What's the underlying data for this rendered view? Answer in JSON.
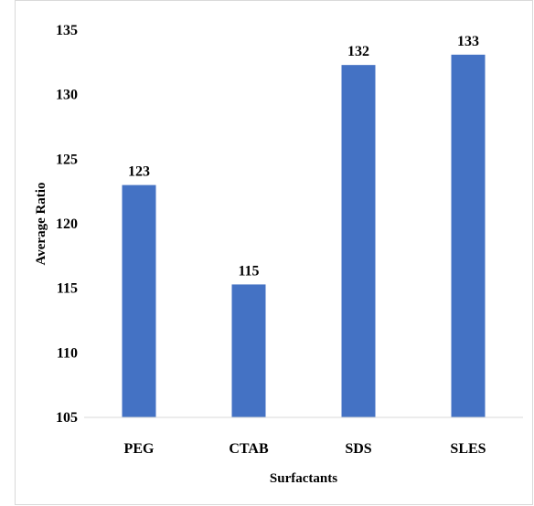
{
  "chart_data": {
    "type": "bar",
    "title": "",
    "xlabel": "Surfactants",
    "ylabel": "Average Ratio",
    "categories": [
      "PEG",
      "CTAB",
      "SDS",
      "SLES"
    ],
    "values": [
      123,
      115.3,
      132.3,
      133.1
    ],
    "data_labels": [
      "123",
      "115",
      "132",
      "133"
    ],
    "yticks": [
      105,
      110,
      115,
      120,
      125,
      130,
      135
    ],
    "ylim": [
      105,
      135
    ],
    "grid": false,
    "legend": "none",
    "bar_color": "#4472c4"
  }
}
